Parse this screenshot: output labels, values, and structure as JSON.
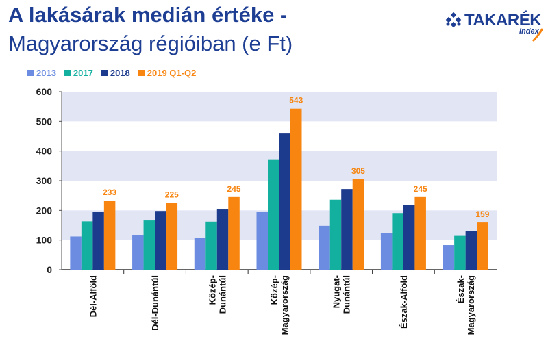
{
  "header": {
    "title_line1": "A lakásárak medián értéke -",
    "title_line2": "Magyarország régióiban (e Ft)"
  },
  "logo": {
    "brand": "TAKARÉK",
    "sub": "index",
    "icon": "diamond-grid-icon"
  },
  "colors": {
    "2013": "#6b8ce0",
    "2017": "#13b0a0",
    "2018": "#1d3b8c",
    "2019 Q1-Q2": "#f7850f",
    "title": "#1d3e93",
    "band": "#e1e5f4"
  },
  "chart_data": {
    "type": "bar",
    "categories": [
      "Dél-Alföld",
      "Dél-Dunántúl",
      "Közép-\nDunántúl",
      "Közép-\nMagyarország",
      "Nyugat-\nDunántúl",
      "Észak-Alföld",
      "Észak-\nMagyarország"
    ],
    "series": [
      {
        "name": "2013",
        "color": "#6b8ce0",
        "values": [
          112,
          117,
          107,
          195,
          148,
          123,
          83
        ]
      },
      {
        "name": "2017",
        "color": "#13b0a0",
        "values": [
          163,
          166,
          162,
          370,
          236,
          191,
          114
        ]
      },
      {
        "name": "2018",
        "color": "#1d3b8c",
        "values": [
          195,
          198,
          203,
          459,
          272,
          219,
          131
        ]
      },
      {
        "name": "2019 Q1-Q2",
        "color": "#f7850f",
        "values": [
          233,
          225,
          245,
          543,
          305,
          245,
          159
        ]
      }
    ],
    "data_labels": [
      "233",
      "225",
      "245",
      "543",
      "305",
      "245",
      "159"
    ],
    "yticks": [
      "0",
      "100",
      "200",
      "300",
      "400",
      "500",
      "600"
    ],
    "ylim": [
      0,
      600
    ],
    "legend_position": "top-left",
    "banded_background": true
  }
}
